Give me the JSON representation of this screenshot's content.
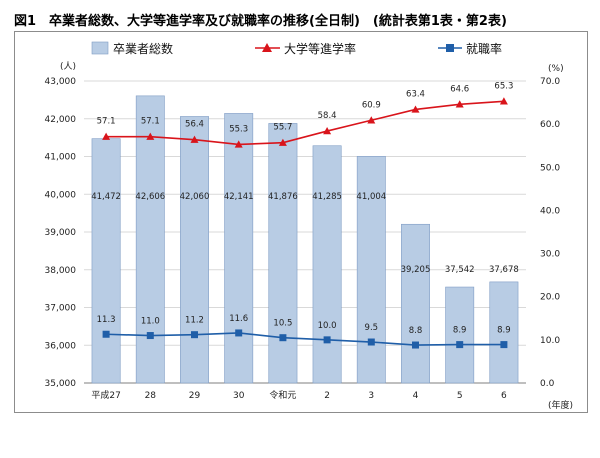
{
  "figure": {
    "title": "図1　卒業者総数、大学等進学率及び就職率の推移(全日制)　(統計表第1表・第2表)"
  },
  "chart_data": {
    "type": "bar",
    "categories": [
      "平成27",
      "28",
      "29",
      "30",
      "令和元",
      "2",
      "3",
      "4",
      "5",
      "6"
    ],
    "left_axis": {
      "unit_label": "(人)",
      "ylim": [
        35000,
        43000
      ],
      "ticks": [
        "35,000",
        "36,000",
        "37,000",
        "38,000",
        "39,000",
        "40,000",
        "41,000",
        "42,000",
        "43,000"
      ]
    },
    "right_axis": {
      "unit_label": "(%)",
      "ylim": [
        0,
        70
      ],
      "ticks": [
        "0.0",
        "10.0",
        "20.0",
        "30.0",
        "40.0",
        "50.0",
        "60.0",
        "70.0"
      ]
    },
    "xlabel_suffix": "(年度)",
    "grid": true,
    "legend_position": "top",
    "series": [
      {
        "name": "卒業者総数",
        "type": "bar",
        "axis": "left",
        "color": "#b8cce4",
        "values": [
          41472,
          42606,
          42060,
          42141,
          41876,
          41285,
          41004,
          39205,
          37542,
          37678
        ],
        "labels": [
          "41,472",
          "42,606",
          "42,060",
          "42,141",
          "41,876",
          "41,285",
          "41,004",
          "39,205",
          "37,542",
          "37,678"
        ]
      },
      {
        "name": "大学等進学率",
        "type": "line",
        "axis": "right",
        "color": "#d9141b",
        "marker": "triangle",
        "values": [
          57.1,
          57.1,
          56.4,
          55.3,
          55.7,
          58.4,
          60.9,
          63.4,
          64.6,
          65.3
        ],
        "labels": [
          "57.1",
          "57.1",
          "56.4",
          "55.3",
          "55.7",
          "58.4",
          "60.9",
          "63.4",
          "64.6",
          "65.3"
        ]
      },
      {
        "name": "就職率",
        "type": "line",
        "axis": "right",
        "color": "#1f5ea8",
        "marker": "square",
        "values": [
          11.3,
          11.0,
          11.2,
          11.6,
          10.5,
          10.0,
          9.5,
          8.8,
          8.9,
          8.9
        ],
        "labels": [
          "11.3",
          "11.0",
          "11.2",
          "11.6",
          "10.5",
          "10.0",
          "9.5",
          "8.8",
          "8.9",
          "8.9"
        ]
      }
    ]
  }
}
